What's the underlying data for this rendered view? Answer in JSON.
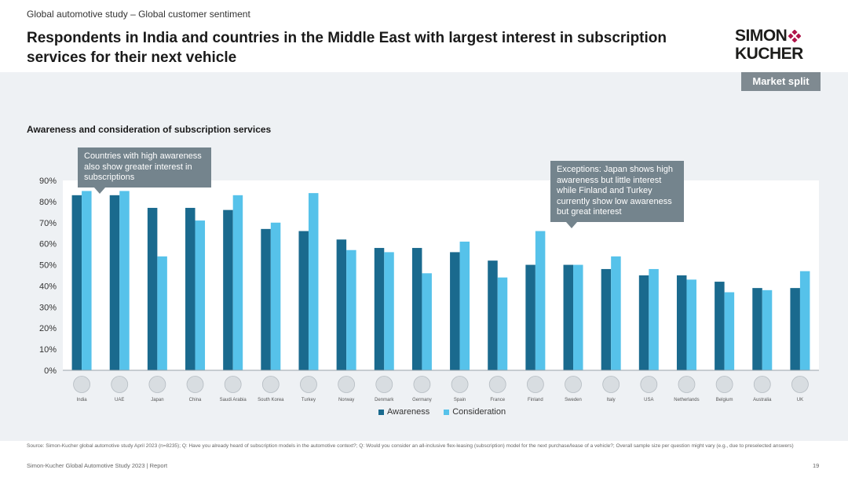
{
  "header": {
    "supertitle": "Global automotive study – Global customer sentiment",
    "title": "Respondents in India and countries in the Middle East with largest interest in subscription services for their next vehicle",
    "logo_line1": "SIMON",
    "logo_line2": "KUCHER",
    "badge": "Market split"
  },
  "colors": {
    "awareness": "#1a6a8e",
    "consideration": "#56c2ea",
    "callout": "#74848d",
    "plot_bg": "#ffffff",
    "page_bg": "#eef1f4"
  },
  "callouts": {
    "left": "Countries with high awareness also show greater interest in subscriptions",
    "right": "Exceptions: Japan shows high awareness but little interest while Finland and Turkey currently show low awareness but great interest"
  },
  "chart_data": {
    "type": "bar",
    "title": "Awareness and consideration of subscription services",
    "xlabel": "",
    "ylabel": "",
    "ylim": [
      0,
      90
    ],
    "yticks": [
      "0%",
      "10%",
      "20%",
      "30%",
      "40%",
      "50%",
      "60%",
      "70%",
      "80%",
      "90%"
    ],
    "categories": [
      "India",
      "UAE",
      "Japan",
      "China",
      "Saudi Arabia",
      "South Korea",
      "Turkey",
      "Norway",
      "Denmark",
      "Germany",
      "Spain",
      "France",
      "Finland",
      "Sweden",
      "Italy",
      "USA",
      "Netherlands",
      "Belgium",
      "Australia",
      "UK"
    ],
    "series": [
      {
        "name": "Awareness",
        "values": [
          83,
          83,
          77,
          77,
          76,
          67,
          66,
          62,
          58,
          58,
          56,
          52,
          50,
          50,
          48,
          45,
          45,
          42,
          39,
          39
        ]
      },
      {
        "name": "Consideration",
        "values": [
          85,
          85,
          54,
          71,
          83,
          70,
          84,
          57,
          56,
          46,
          61,
          44,
          66,
          50,
          54,
          48,
          43,
          37,
          38,
          47
        ]
      }
    ],
    "legend": "bottom-center"
  },
  "footer": {
    "source": "Source: Simon-Kucher global automotive study April 2023 (n=8235); Q: Have you already heard of subscription models in the automotive context?; Q: Would you consider an all-inclusive flex-leasing (subscription) model for the next purchase/lease of a vehicle?; Overall sample size per question might vary (e.g., due to preselected answers)",
    "left": "Simon-Kucher   Global Automotive Study 2023 | Report",
    "page": "19"
  }
}
